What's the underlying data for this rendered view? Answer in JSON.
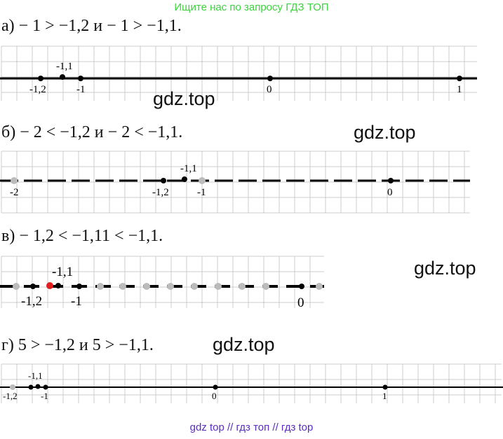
{
  "header": {
    "link": "Ищите нас по запросу ГДЗ ТОП"
  },
  "footer": {
    "link": "gdz top  //  гдз топ  //  гдз top"
  },
  "watermarks": [
    "gdz.top",
    "gdz.top",
    "gdz.top",
    "gdz.top"
  ],
  "parts": [
    {
      "statement": "а) − 1 > −1,2 и − 1 > −1,1.",
      "labels": {
        "a": "-1,2",
        "b": "-1,1",
        "c": "-1",
        "d": "0",
        "e": "1"
      }
    },
    {
      "statement": "б) − 2 < −1,2 и − 2 < −1,1.",
      "labels": {
        "a": "-2",
        "b": "-1,2",
        "c": "-1,1",
        "d": "-1",
        "e": "0"
      }
    },
    {
      "statement": "в) − 1,2 < −1,11 < −1,1.",
      "labels": {
        "a": "-1,1",
        "b": "-1,2",
        "c": "-1",
        "d": "0"
      }
    },
    {
      "statement": "г) 5 > −1,2 и 5 > −1,1.",
      "labels": {
        "a": "-1,1",
        "b": "-1,2",
        "c": "-1",
        "d": "0",
        "e": "1"
      }
    }
  ],
  "colors": {
    "highlight_point": "#e02020",
    "grid": "#cccccc",
    "axis": "#000000"
  }
}
